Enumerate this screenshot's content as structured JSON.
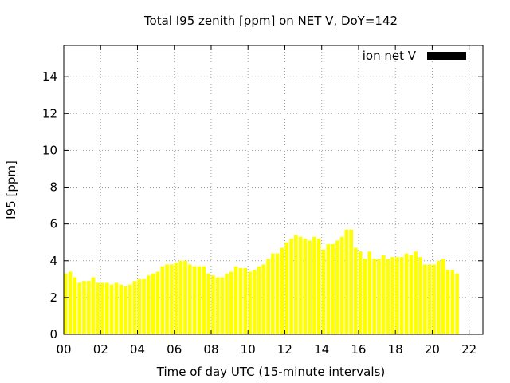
{
  "chart_data": {
    "type": "bar",
    "title": "Total I95 zenith [ppm] on NET V, DoY=142",
    "xlabel": "Time of day UTC (15-minute intervals)",
    "ylabel": "I95 [ppm]",
    "ylim": [
      0,
      15.7
    ],
    "yticks": [
      "0",
      "2",
      "4",
      "6",
      "8",
      "10",
      "12",
      "14"
    ],
    "yticks_values": [
      0,
      2,
      4,
      6,
      8,
      10,
      12,
      14
    ],
    "xticks": [
      "00",
      "02",
      "04",
      "06",
      "08",
      "10",
      "12",
      "14",
      "16",
      "18",
      "20",
      "22"
    ],
    "xticks_values": [
      0,
      2,
      4,
      6,
      8,
      10,
      12,
      14,
      16,
      18,
      20,
      22
    ],
    "xlim": [
      0,
      22.75
    ],
    "grid": true,
    "legend": {
      "label": "ion net V",
      "placement": "top-right",
      "color": "#000000"
    },
    "colors": {
      "low": "#ffff00",
      "high": "#f5a00a",
      "grid": "#a0a0a0"
    },
    "bar_interval_hours": 0.25,
    "values": [
      3.3,
      3.4,
      3.1,
      2.8,
      2.9,
      2.9,
      3.1,
      2.8,
      2.8,
      2.8,
      2.7,
      2.8,
      2.7,
      2.6,
      2.7,
      2.9,
      3.0,
      3.0,
      3.2,
      3.3,
      3.4,
      3.7,
      3.8,
      3.8,
      3.9,
      4.0,
      4.0,
      3.8,
      3.7,
      3.7,
      3.7,
      3.3,
      3.2,
      3.1,
      3.1,
      3.3,
      3.4,
      3.7,
      3.6,
      3.6,
      3.4,
      3.5,
      3.7,
      3.8,
      4.1,
      4.4,
      4.4,
      4.7,
      5.0,
      5.2,
      5.4,
      5.3,
      5.2,
      5.1,
      5.3,
      5.2,
      4.6,
      4.9,
      4.9,
      5.1,
      5.3,
      5.7,
      5.7,
      4.7,
      4.5,
      4.1,
      4.5,
      4.1,
      4.1,
      4.3,
      4.1,
      4.2,
      4.2,
      4.2,
      4.4,
      4.3,
      4.5,
      4.2,
      3.8,
      3.8,
      3.8,
      4.0,
      4.1,
      3.5,
      3.5,
      3.3
    ],
    "highlight": [
      0,
      0,
      0,
      0,
      0,
      0,
      0,
      0,
      0,
      0,
      0,
      0,
      0,
      0,
      0,
      0,
      0,
      0,
      0,
      0,
      0,
      0,
      0,
      0,
      0,
      0,
      0,
      0,
      0,
      0,
      0,
      0,
      0,
      0,
      0,
      0,
      0,
      0,
      0,
      0,
      0,
      0,
      0,
      0,
      0,
      0,
      0,
      0,
      0,
      0,
      0,
      0,
      0,
      0,
      0,
      0,
      0,
      0,
      0,
      0,
      0,
      0,
      0,
      0,
      0,
      0,
      0,
      0,
      0,
      0,
      0,
      0,
      0,
      0,
      0,
      0,
      0,
      0,
      0,
      0,
      0,
      0,
      0,
      0,
      0,
      0
    ]
  }
}
